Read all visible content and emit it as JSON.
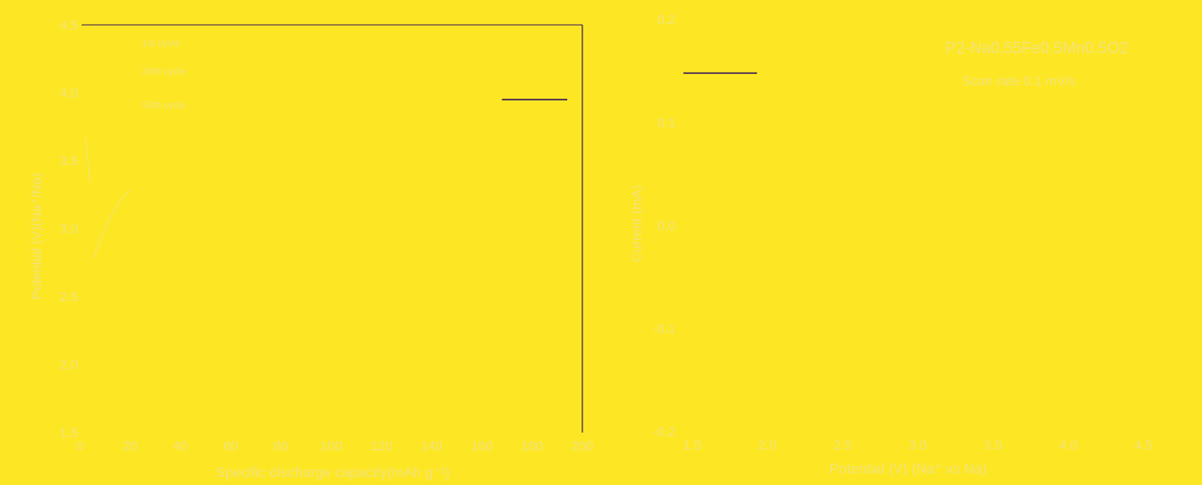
{
  "colors": {
    "background": "#fde725",
    "foreground": "#3b1d55",
    "faint": "#f3e27a"
  },
  "chart_data": [
    {
      "type": "line",
      "title": "",
      "xlabel": "Specific discharge capacity(mAh g⁻¹)",
      "ylabel": "Potential (V)(Na⁺/Na)",
      "xlim": [
        0,
        200
      ],
      "ylim": [
        1.5,
        4.5
      ],
      "xticks": [
        "0",
        "20",
        "40",
        "60",
        "80",
        "100",
        "120",
        "140",
        "160",
        "180",
        "200"
      ],
      "yticks": [
        "1.5",
        "2.0",
        "2.5",
        "3.0",
        "3.5",
        "4.0",
        "4.5"
      ],
      "grid": false,
      "legend_position": "top-left",
      "legend": [
        {
          "label": "1st cycle"
        },
        {
          "label": "20th cycle"
        },
        {
          "label": "50th cycle"
        }
      ],
      "series": [
        {
          "x": [
            168,
            194
          ],
          "y": [
            3.95,
            3.95
          ]
        }
      ]
    },
    {
      "type": "line",
      "title": "",
      "xlabel": "Potential (V) (Na⁺ vs Na)",
      "ylabel": "Current (mA)",
      "xlim": [
        1.4,
        4.5
      ],
      "ylim": [
        -0.2,
        0.2
      ],
      "xticks": [
        "1.5",
        "2.0",
        "2.5",
        "3.0",
        "3.5",
        "4.0",
        "4.5"
      ],
      "yticks": [
        "-0.2",
        "-0.1",
        "0.0",
        "0.1",
        "0.2"
      ],
      "grid": false,
      "annotations": [
        "P2-Na0.55Fe0.5Mn0.5O2",
        "Scan rate 0.1 mV/s"
      ],
      "series": [
        {
          "x": [
            1.44,
            1.93
          ],
          "y": [
            0.148,
            0.148
          ]
        }
      ]
    }
  ]
}
